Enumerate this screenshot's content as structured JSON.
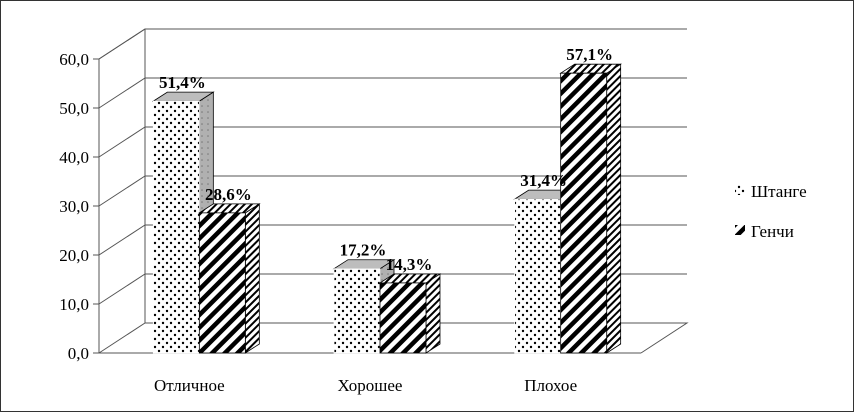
{
  "chart_data": {
    "type": "bar",
    "three_d": true,
    "categories": [
      "Отличное",
      "Хорошее",
      "Плохое"
    ],
    "series": [
      {
        "name": "Штанге",
        "pattern": "dots",
        "values": [
          51.4,
          17.2,
          31.4
        ],
        "labels": [
          "51,4%",
          "17,2%",
          "31,4%"
        ]
      },
      {
        "name": "Генчи",
        "pattern": "diagonal-stripes",
        "values": [
          28.6,
          14.3,
          57.1
        ],
        "labels": [
          "28,6%",
          "14,3%",
          "57,1%"
        ]
      }
    ],
    "yticks": [
      "0,0",
      "10,0",
      "20,0",
      "30,0",
      "40,0",
      "50,0",
      "60,0"
    ],
    "ylim": [
      0,
      60
    ],
    "grid": true,
    "legend": "right",
    "title": "",
    "xlabel": "",
    "ylabel": ""
  }
}
